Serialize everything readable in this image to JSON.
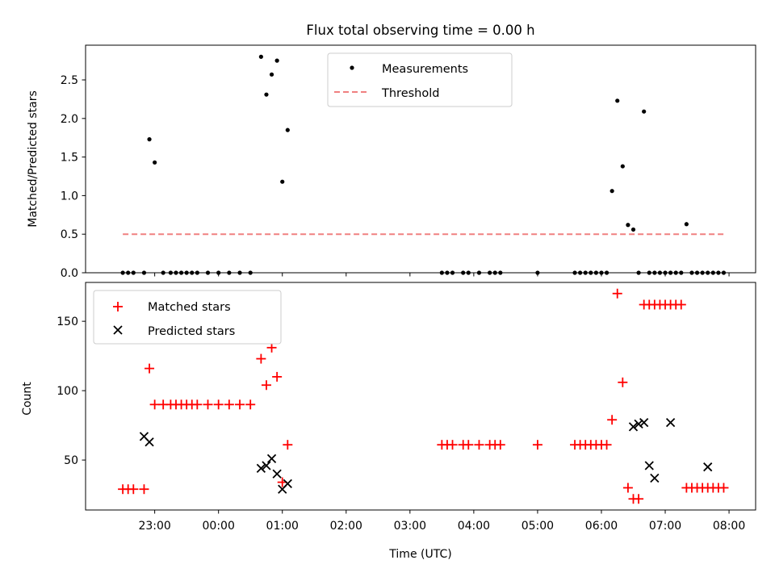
{
  "chart_data": [
    {
      "type": "scatter",
      "title": "Flux total observing time = 0.00 h",
      "xlabel": "",
      "ylabel": "Matched/Predicted stars",
      "ylim": [
        0,
        2.95
      ],
      "yticks": [
        "0.0",
        "0.5",
        "1.0",
        "1.5",
        "2.0",
        "2.5"
      ],
      "ytick_values": [
        0,
        0.5,
        1.0,
        1.5,
        2.0,
        2.5
      ],
      "legend_position": "upper-center",
      "grid": false,
      "series": [
        {
          "name": "Measurements",
          "kind": "scatter",
          "color": "#000000",
          "x": [
            "22:30",
            "22:35",
            "22:40",
            "22:50",
            "22:55",
            "23:00",
            "23:08",
            "23:15",
            "23:20",
            "23:25",
            "23:30",
            "23:35",
            "23:40",
            "23:50",
            "24:00",
            "24:10",
            "24:20",
            "24:30",
            "24:40",
            "24:45",
            "24:50",
            "24:55",
            "25:00",
            "25:05",
            "27:30",
            "27:35",
            "27:40",
            "27:50",
            "27:55",
            "28:05",
            "28:15",
            "28:20",
            "28:25",
            "29:00",
            "29:35",
            "29:40",
            "29:45",
            "29:50",
            "29:55",
            "30:00",
            "30:05",
            "30:10",
            "30:15",
            "30:20",
            "30:25",
            "30:30",
            "30:35",
            "30:40",
            "30:45",
            "30:50",
            "30:55",
            "31:00",
            "31:05",
            "31:10",
            "31:15",
            "31:20",
            "31:25",
            "31:30",
            "31:35",
            "31:40",
            "31:45",
            "31:50",
            "31:55"
          ],
          "y": [
            0,
            0,
            0,
            0,
            1.73,
            1.43,
            0,
            0,
            0,
            0,
            0,
            0,
            0,
            0,
            0,
            0,
            0,
            0,
            2.8,
            2.31,
            2.57,
            2.75,
            1.18,
            1.85,
            0,
            0,
            0,
            0,
            0,
            0,
            0,
            0,
            0,
            0,
            0,
            0,
            0,
            0,
            0,
            0,
            0,
            1.06,
            2.23,
            1.38,
            0.62,
            0.56,
            0,
            2.09,
            0,
            0,
            0,
            0,
            0,
            0,
            0,
            0.63,
            0,
            0,
            0,
            0,
            0,
            0,
            0
          ]
        },
        {
          "name": "Threshold",
          "kind": "line",
          "color": "#f08080",
          "x": [
            "22:30",
            "31:55"
          ],
          "y": [
            0.5,
            0.5
          ]
        }
      ]
    },
    {
      "type": "scatter",
      "title": "",
      "xlabel": "Time (UTC)",
      "ylabel": "Count",
      "xlim": [
        "21:55",
        "32:25"
      ],
      "xticks": [
        "23:00",
        "00:00",
        "01:00",
        "02:00",
        "03:00",
        "04:00",
        "05:00",
        "06:00",
        "07:00",
        "08:00"
      ],
      "xtick_hours": [
        23,
        24,
        25,
        26,
        27,
        28,
        29,
        30,
        31,
        32
      ],
      "ylim": [
        14,
        178
      ],
      "yticks": [
        "50",
        "100",
        "150"
      ],
      "ytick_values": [
        50,
        100,
        150
      ],
      "legend_position": "upper-left",
      "grid": false,
      "series": [
        {
          "name": "Matched stars",
          "marker": "plus",
          "color": "#ff0000",
          "x": [
            "22:30",
            "22:35",
            "22:40",
            "22:50",
            "22:55",
            "23:00",
            "23:08",
            "23:15",
            "23:20",
            "23:25",
            "23:30",
            "23:35",
            "23:40",
            "23:50",
            "24:00",
            "24:10",
            "24:20",
            "24:30",
            "24:40",
            "24:45",
            "24:50",
            "24:55",
            "25:00",
            "25:05",
            "27:30",
            "27:35",
            "27:40",
            "27:50",
            "27:55",
            "28:05",
            "28:15",
            "28:20",
            "28:25",
            "29:00",
            "29:35",
            "29:40",
            "29:45",
            "29:50",
            "29:55",
            "30:00",
            "30:05",
            "30:10",
            "30:15",
            "30:20",
            "30:25",
            "30:30",
            "30:35",
            "30:40",
            "30:45",
            "30:50",
            "30:55",
            "31:00",
            "31:05",
            "31:10",
            "31:15",
            "31:20",
            "31:25",
            "31:30",
            "31:35",
            "31:40",
            "31:45",
            "31:50",
            "31:55"
          ],
          "y": [
            29,
            29,
            29,
            29,
            116,
            90,
            90,
            90,
            90,
            90,
            90,
            90,
            90,
            90,
            90,
            90,
            90,
            90,
            123,
            104,
            131,
            110,
            34,
            61,
            61,
            61,
            61,
            61,
            61,
            61,
            61,
            61,
            61,
            61,
            61,
            61,
            61,
            61,
            61,
            61,
            61,
            79,
            170,
            106,
            30,
            22,
            22,
            162,
            162,
            162,
            162,
            162,
            162,
            162,
            162,
            30,
            30,
            30,
            30,
            30,
            30,
            30,
            30
          ]
        },
        {
          "name": "Predicted stars",
          "marker": "x",
          "color": "#000000",
          "x": [
            "22:50",
            "22:55",
            "24:40",
            "24:45",
            "24:50",
            "24:55",
            "25:00",
            "25:05",
            "30:30",
            "30:35",
            "30:40",
            "30:45",
            "30:50",
            "31:05",
            "31:40"
          ],
          "y": [
            67,
            63,
            44,
            46,
            51,
            40,
            29,
            33,
            74,
            76,
            77,
            46,
            37,
            77,
            45
          ]
        }
      ]
    }
  ]
}
